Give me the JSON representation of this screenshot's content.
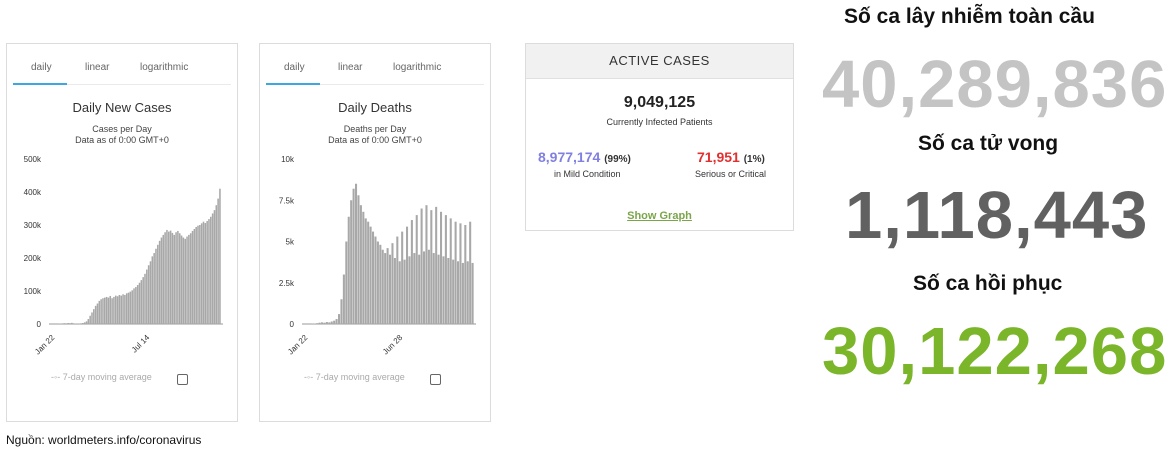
{
  "charts": [
    {
      "tabs": [
        "daily",
        "linear",
        "logarithmic"
      ],
      "legend": "7-day moving average"
    },
    {
      "tabs": [
        "daily",
        "linear",
        "logarithmic"
      ],
      "legend": "7-day moving average"
    }
  ],
  "chart_data": [
    {
      "type": "bar",
      "title": "Daily New Cases",
      "subtitle_lines": [
        "Cases per Day",
        "Data as of 0:00 GMT+0"
      ],
      "ylim": [
        0,
        500000
      ],
      "yticks": [
        {
          "v": 0,
          "label": "0"
        },
        {
          "v": 100000,
          "label": "100k"
        },
        {
          "v": 200000,
          "label": "200k"
        },
        {
          "v": 300000,
          "label": "300k"
        },
        {
          "v": 400000,
          "label": "400k"
        },
        {
          "v": 500000,
          "label": "500k"
        }
      ],
      "xtick_labels": [
        "Jan 22",
        "Jul 14"
      ],
      "bar_color": "#a8a8a8",
      "values": [
        0,
        0,
        0,
        500,
        1000,
        1500,
        2000,
        2500,
        2000,
        3000,
        2500,
        3500,
        2000,
        1500,
        1000,
        1500,
        2000,
        3000,
        5000,
        8000,
        15000,
        25000,
        35000,
        45000,
        55000,
        62000,
        70000,
        75000,
        78000,
        80000,
        82000,
        80000,
        85000,
        78000,
        82000,
        86000,
        84000,
        88000,
        86000,
        90000,
        88000,
        93000,
        95000,
        98000,
        102000,
        108000,
        112000,
        118000,
        125000,
        133000,
        142000,
        152000,
        165000,
        178000,
        190000,
        205000,
        215000,
        228000,
        240000,
        252000,
        262000,
        270000,
        278000,
        285000,
        280000,
        283000,
        276000,
        270000,
        278000,
        282000,
        275000,
        268000,
        262000,
        258000,
        265000,
        270000,
        275000,
        282000,
        288000,
        294000,
        298000,
        300000,
        305000,
        310000,
        306000,
        312000,
        318000,
        325000,
        335000,
        345000,
        360000,
        380000,
        410000
      ]
    },
    {
      "type": "bar",
      "title": "Daily Deaths",
      "subtitle_lines": [
        "Deaths per Day",
        "Data as of 0:00 GMT+0"
      ],
      "ylim": [
        0,
        10000
      ],
      "yticks": [
        {
          "v": 0,
          "label": "0"
        },
        {
          "v": 2500,
          "label": "2.5k"
        },
        {
          "v": 5000,
          "label": "5k"
        },
        {
          "v": 7500,
          "label": "7.5k"
        },
        {
          "v": 10000,
          "label": "10k"
        }
      ],
      "xtick_labels": [
        "Jan 22",
        "Jun 28"
      ],
      "bar_color": "#a8a8a8",
      "values": [
        0,
        0,
        0,
        20,
        30,
        50,
        80,
        100,
        80,
        120,
        100,
        150,
        200,
        300,
        600,
        1500,
        3000,
        5000,
        6500,
        7500,
        8200,
        8500,
        7800,
        7200,
        6800,
        6400,
        6200,
        5900,
        5600,
        5300,
        5000,
        4800,
        4500,
        4300,
        4600,
        4200,
        4900,
        4000,
        5300,
        3800,
        5600,
        3900,
        5900,
        4100,
        6300,
        4300,
        6600,
        4200,
        7000,
        4400,
        7200,
        4500,
        6900,
        4300,
        7100,
        4200,
        6800,
        4100,
        6600,
        4000,
        6400,
        3900,
        6200,
        3800,
        6100,
        3700,
        6000,
        3800,
        6200,
        3700
      ]
    }
  ],
  "active_cases": {
    "header": "ACTIVE CASES",
    "total": "9,049,125",
    "total_label": "Currently Infected Patients",
    "mild_count": "8,977,174",
    "mild_pct": "(99%)",
    "mild_label": "in Mild Condition",
    "critical_count": "71,951",
    "critical_pct": "(1%)",
    "critical_label": "Serious or Critical",
    "show_graph": "Show Graph"
  },
  "stats": {
    "infected_label": "Số ca lây nhiễm toàn cầu",
    "infected_value": "40,289,836",
    "deaths_label": "Số ca tử vong",
    "deaths_value": "1,118,443",
    "recovered_label": "Số ca hồi phục",
    "recovered_value": "30,122,268"
  },
  "colors": {
    "infected": "#c4c4c4",
    "deaths": "#616161",
    "recovered": "#7ab52a",
    "mild": "#8080e0",
    "critical": "#e03030",
    "tab_active": "#3da8e0"
  },
  "source": "Nguồn: worldmeters.info/coronavirus"
}
